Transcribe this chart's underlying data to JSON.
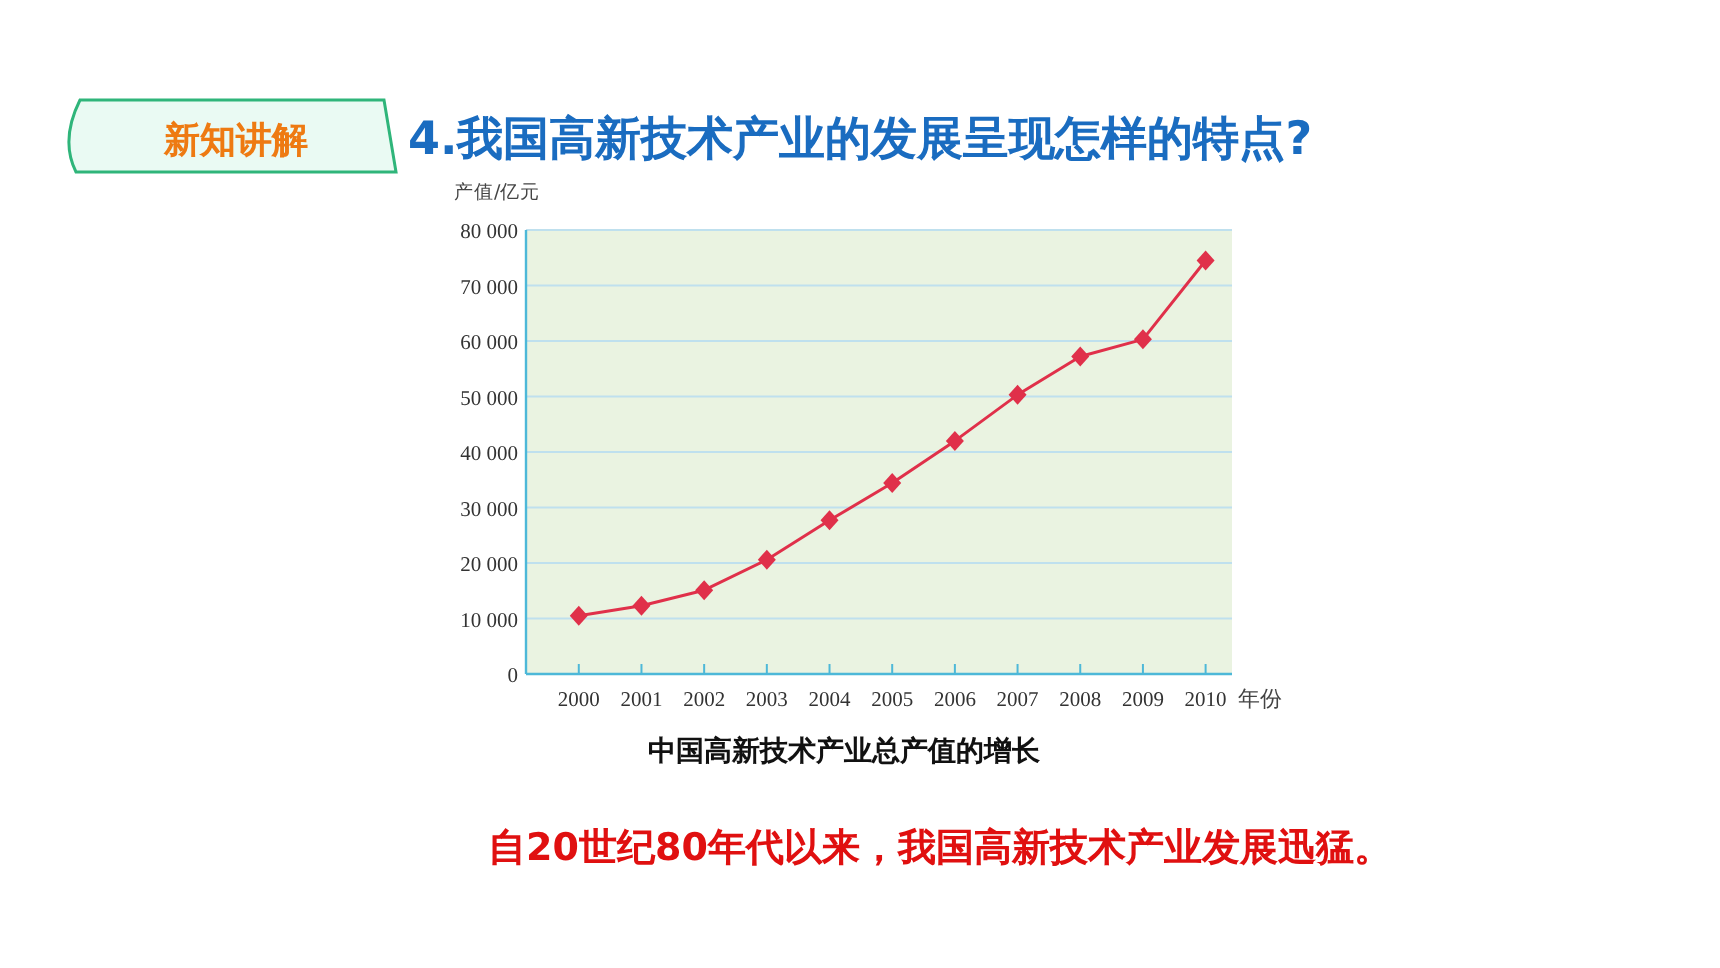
{
  "chart_data": {
    "type": "line",
    "title": "4.我国高新技术产业的发展呈现怎样的特点?",
    "ylabel": "产值/亿元",
    "xlabel": "年份",
    "categories": [
      "2000",
      "2001",
      "2002",
      "2003",
      "2004",
      "2005",
      "2006",
      "2007",
      "2008",
      "2009",
      "2010"
    ],
    "series": [
      {
        "color": "#e0304a",
        "values": [
          10500,
          12300,
          15100,
          20600,
          27700,
          34400,
          42000,
          50300,
          57200,
          60300,
          74500
        ]
      }
    ],
    "marker": "diamond",
    "grid": "y",
    "ylim": [
      0,
      80000
    ],
    "yticks": [
      0,
      {
        "value": 10000,
        "label": "10 000"
      },
      {
        "value": 20000,
        "label": "20 000"
      },
      {
        "value": 30000,
        "label": "30 000"
      },
      {
        "value": 40000,
        "label": "40 000"
      },
      {
        "value": 50000,
        "label": "50 000"
      },
      {
        "value": 60000,
        "label": "60 000"
      },
      {
        "value": 70000,
        "label": "70 000"
      },
      {
        "value": 80000,
        "label": "80 000"
      }
    ],
    "annotations": [
      "新知讲解",
      "中国高新技术产业总产值的增长",
      "自20世纪80年代以来，我国高新技术产业发展迅猛。"
    ]
  }
}
